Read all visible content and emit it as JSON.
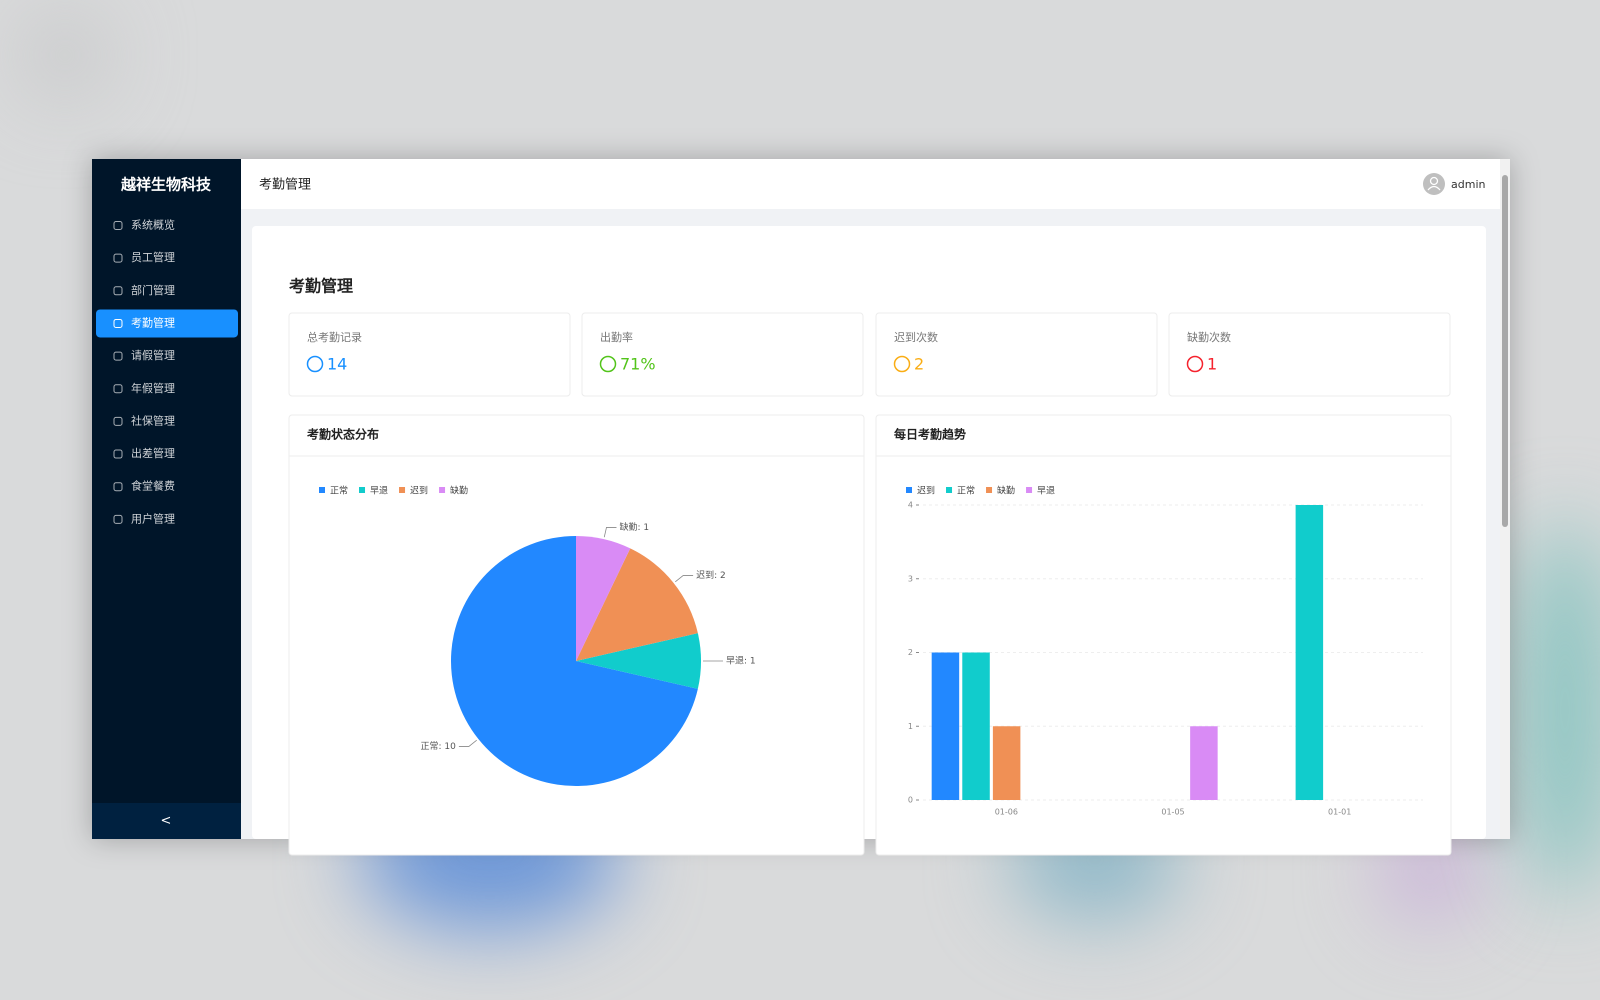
{
  "sidebar": {
    "brand": "越祥生物科技",
    "menu": [
      {
        "label": "系统概览"
      },
      {
        "label": "员工管理"
      },
      {
        "label": "部门管理"
      },
      {
        "label": "考勤管理",
        "active": true
      },
      {
        "label": "请假管理"
      },
      {
        "label": "年假管理"
      },
      {
        "label": "社保管理"
      },
      {
        "label": "出差管理"
      },
      {
        "label": "食堂餐费"
      },
      {
        "label": "用户管理"
      }
    ],
    "collapse": "<"
  },
  "header": {
    "title": "考勤管理",
    "user": "admin"
  },
  "page": {
    "title": "考勤管理"
  },
  "stats": [
    {
      "label": "总考勤记录",
      "value": 14,
      "color": "#1890ff"
    },
    {
      "label": "出勤率",
      "value": "71%",
      "color": "#52c41a"
    },
    {
      "label": "迟到次数",
      "value": 2,
      "color": "#faad14"
    },
    {
      "label": "缺勤次数",
      "value": 1,
      "color": "#f5222d"
    }
  ],
  "charts": [
    {
      "type": "pie",
      "title": "考勤状态分布",
      "categories": [
        "正常",
        "早退",
        "迟到",
        "缺勤"
      ],
      "values": [
        10,
        1,
        2,
        1
      ],
      "value_labels": [
        "正常: 10",
        "早退: 1",
        "迟到: 2",
        "缺勤: 1"
      ],
      "colors": [
        "#2288ff",
        "#11cccc",
        "#f09055",
        "#d98bf5"
      ]
    },
    {
      "type": "bar",
      "title": "每日考勤趋势",
      "categories": [
        "01-06",
        "01-05",
        "01-01"
      ],
      "series": [
        {
          "name": "迟到",
          "color": "#2288ff",
          "values": [
            2,
            0,
            0
          ]
        },
        {
          "name": "正常",
          "color": "#11cccc",
          "values": [
            2,
            0,
            4
          ]
        },
        {
          "name": "缺勤",
          "color": "#f09055",
          "values": [
            1,
            0,
            0
          ]
        },
        {
          "name": "早退",
          "color": "#d98bf5",
          "values": [
            0,
            1,
            0
          ]
        }
      ],
      "ylim": [
        0,
        4
      ],
      "yticks": [
        0,
        1,
        2,
        3,
        4
      ],
      "grid": true
    }
  ]
}
